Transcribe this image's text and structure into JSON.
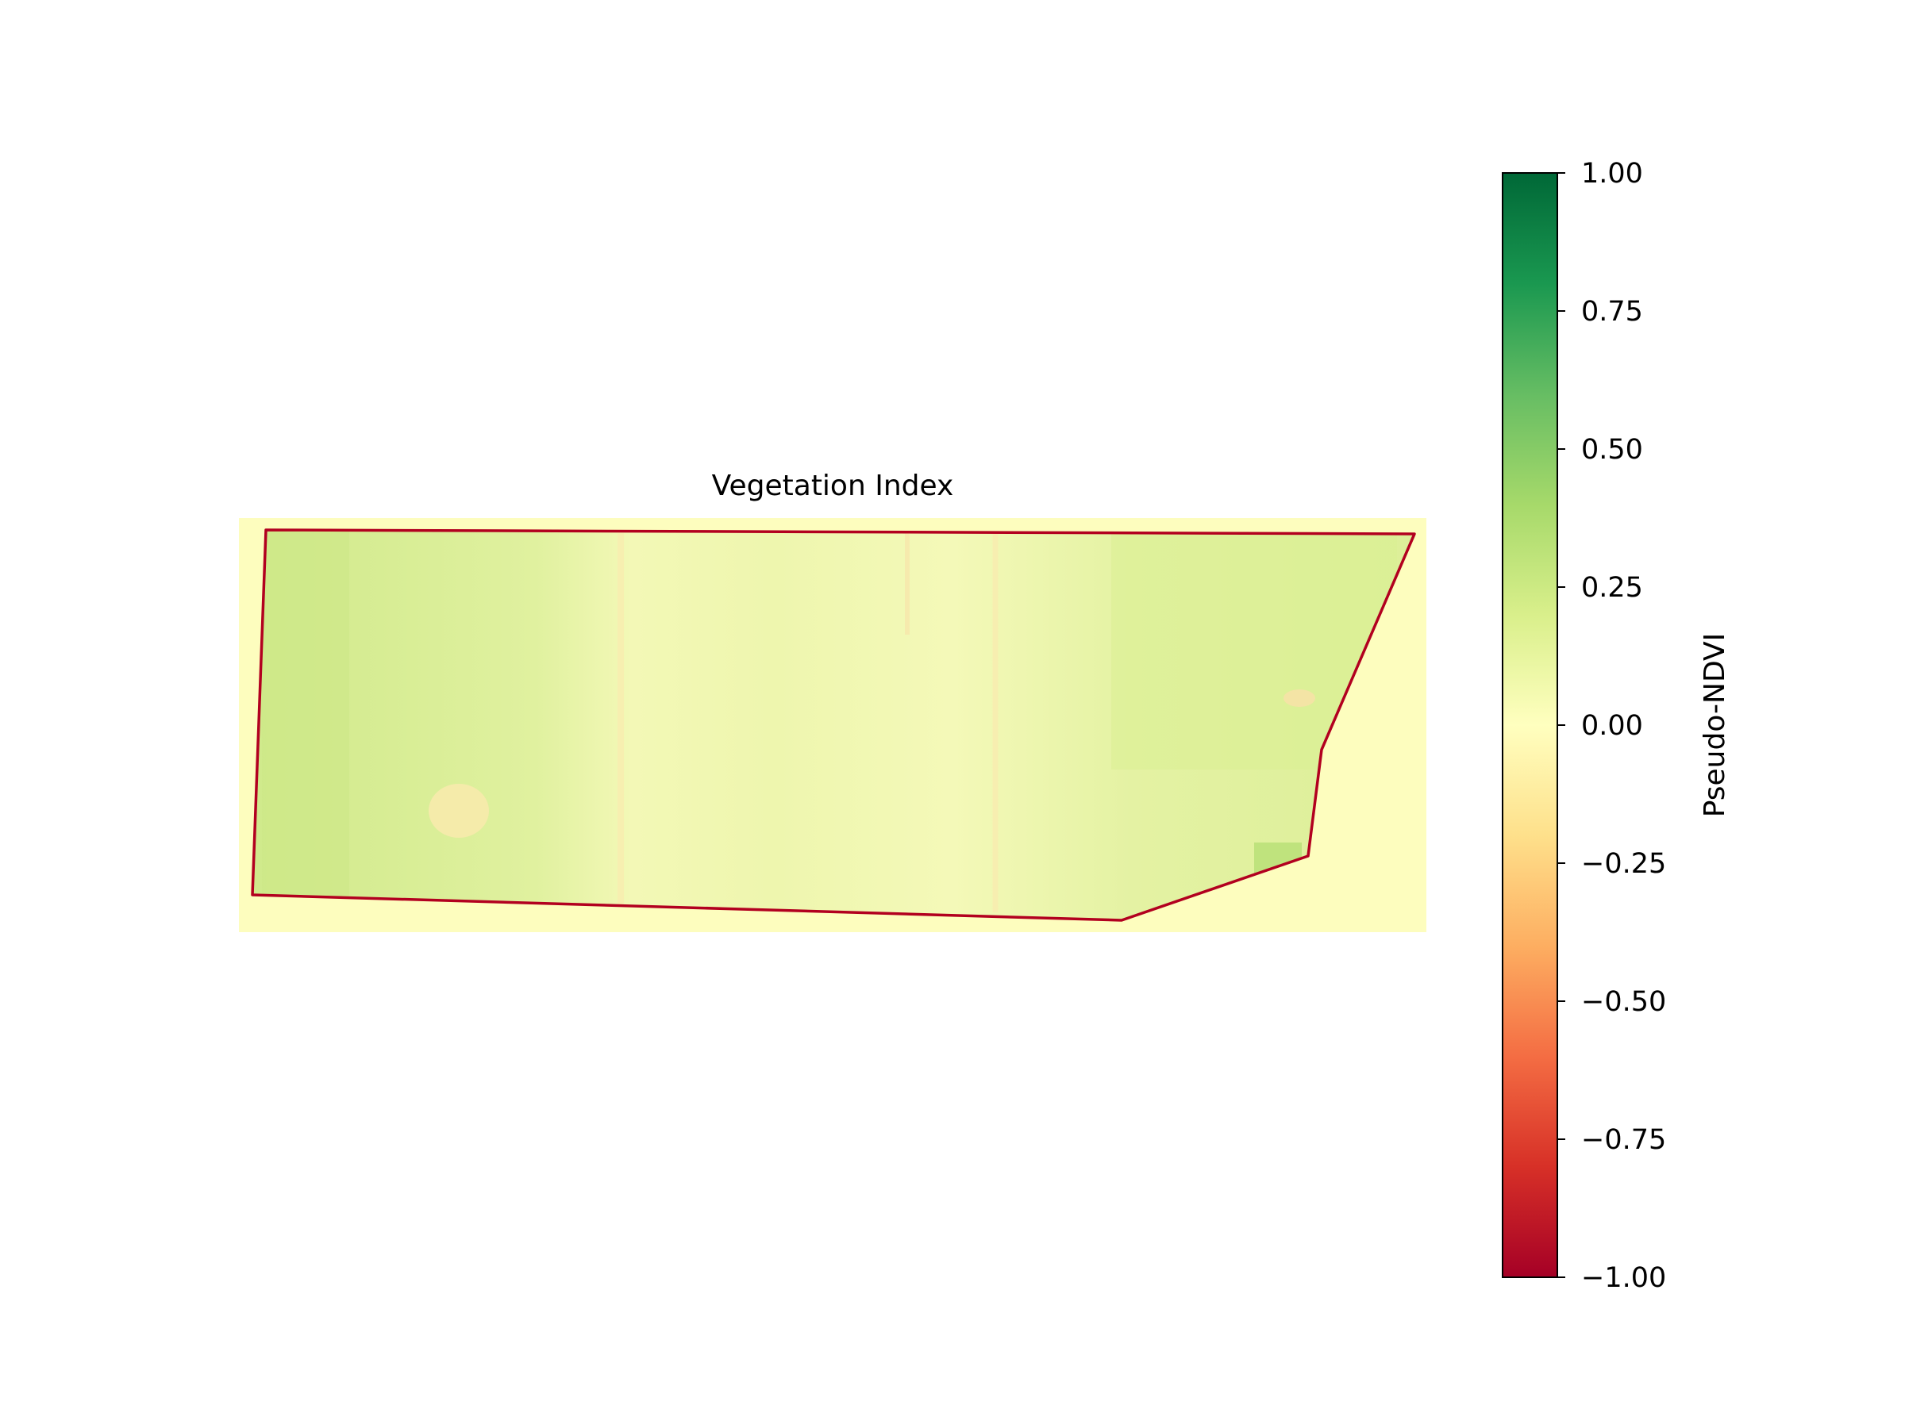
{
  "chart_data": {
    "type": "heatmap",
    "title": "Vegetation Index",
    "colormap": "RdYlGn",
    "colorbar": {
      "label": "Pseudo-NDVI",
      "range": [
        -1.0,
        1.0
      ],
      "ticks": [
        1.0,
        0.75,
        0.5,
        0.25,
        0.0,
        -0.25,
        -0.5,
        -0.75,
        -1.0
      ],
      "tick_labels": [
        "1.00",
        "0.75",
        "0.50",
        "0.25",
        "0.00",
        "−0.25",
        "−0.50",
        "−0.75",
        "−1.00"
      ]
    },
    "background_value": 0.0,
    "field_value_range": [
      -0.15,
      0.3
    ],
    "field_typical_value": 0.12,
    "boundary_color": "#b2001f",
    "axes_visible": false
  }
}
